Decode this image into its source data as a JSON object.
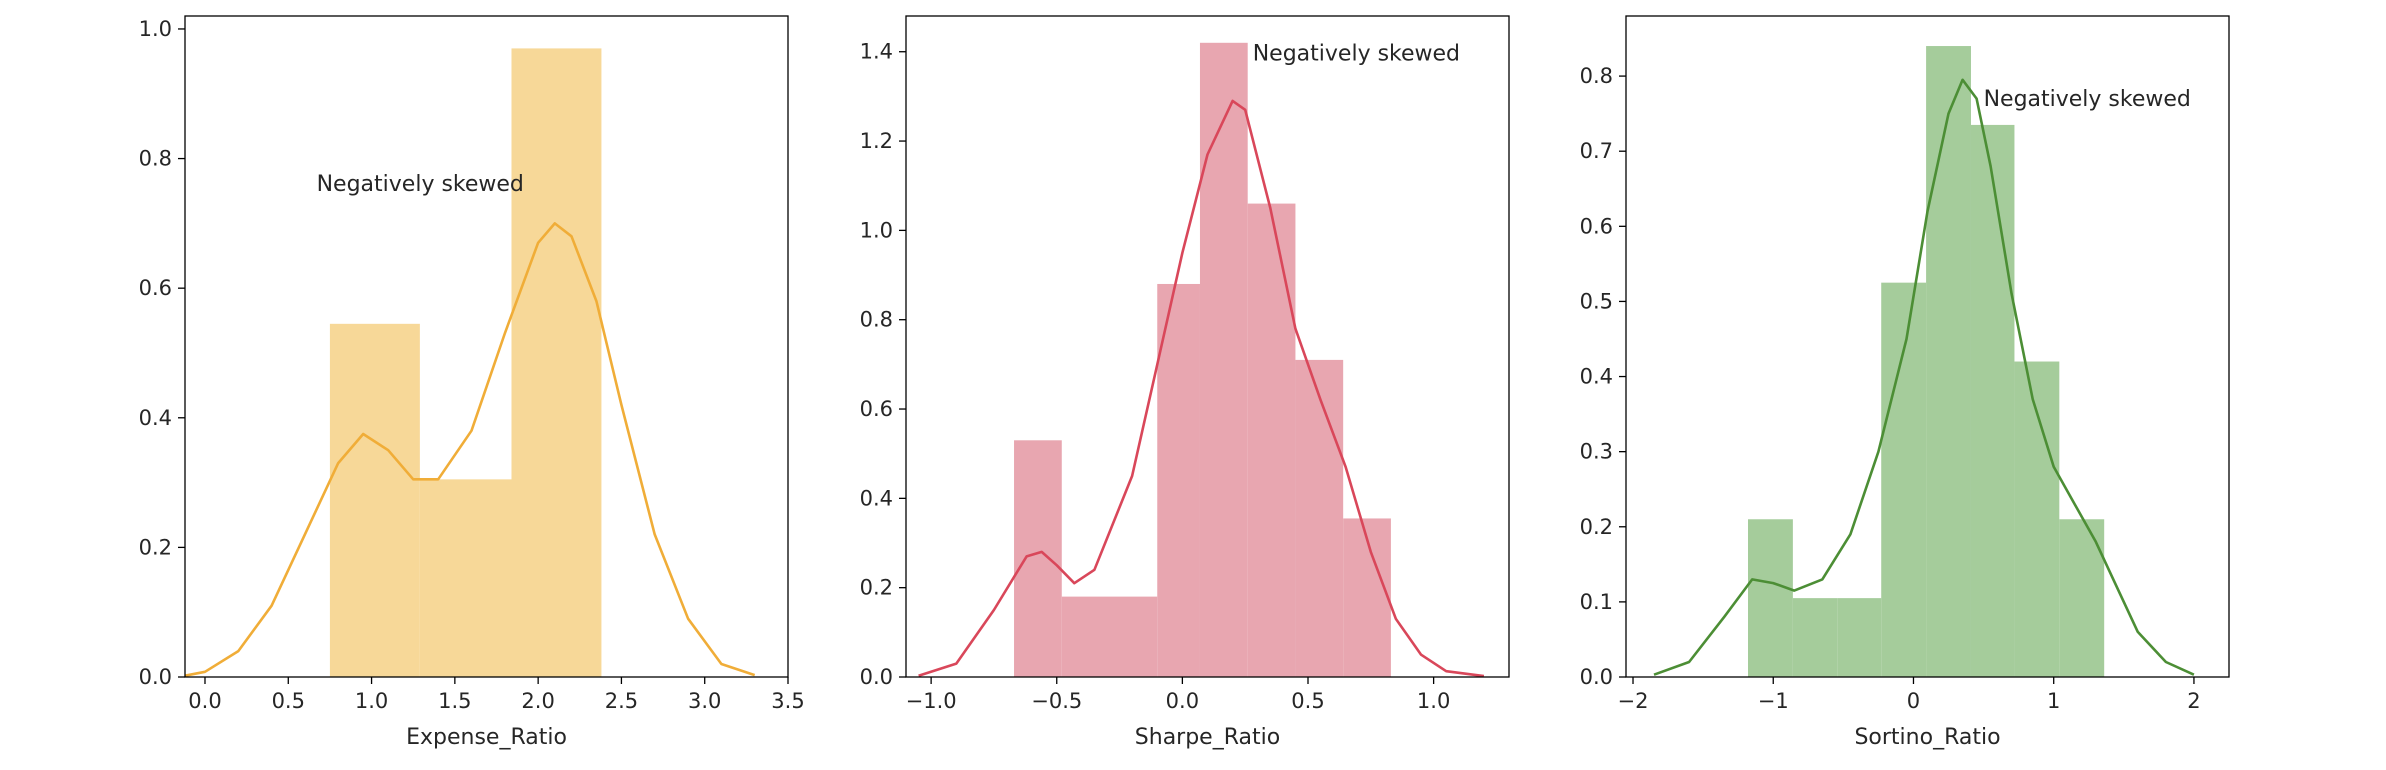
{
  "chart_data": [
    {
      "type": "histogram",
      "xlabel": "Expense_Ratio",
      "ylabel": "",
      "xlim": [
        -0.12,
        3.5
      ],
      "ylim": [
        0,
        1.02
      ],
      "xticks": [
        0.0,
        0.5,
        1.0,
        1.5,
        2.0,
        2.5,
        3.0,
        3.5
      ],
      "xtick_labels": [
        "0.0",
        "0.5",
        "1.0",
        "1.5",
        "2.0",
        "2.5",
        "3.0",
        "3.5"
      ],
      "yticks": [
        0.0,
        0.2,
        0.4,
        0.6,
        0.8,
        1.0
      ],
      "ytick_labels": [
        "0.0",
        "0.2",
        "0.4",
        "0.6",
        "0.8",
        "1.0"
      ],
      "bin_edges": [
        0.75,
        1.29,
        1.84,
        2.38
      ],
      "bin_heights": [
        0.545,
        0.305,
        0.97
      ],
      "kde": [
        [
          -0.12,
          0.002
        ],
        [
          0.0,
          0.008
        ],
        [
          0.2,
          0.04
        ],
        [
          0.4,
          0.11
        ],
        [
          0.6,
          0.22
        ],
        [
          0.8,
          0.33
        ],
        [
          0.95,
          0.375
        ],
        [
          1.1,
          0.35
        ],
        [
          1.25,
          0.305
        ],
        [
          1.4,
          0.305
        ],
        [
          1.6,
          0.38
        ],
        [
          1.8,
          0.53
        ],
        [
          2.0,
          0.67
        ],
        [
          2.1,
          0.7
        ],
        [
          2.2,
          0.68
        ],
        [
          2.35,
          0.58
        ],
        [
          2.5,
          0.42
        ],
        [
          2.7,
          0.22
        ],
        [
          2.9,
          0.09
        ],
        [
          3.1,
          0.02
        ],
        [
          3.3,
          0.003
        ]
      ],
      "color": "#f0ad38",
      "fill_color": "#f7d898",
      "grid": false,
      "annotation": {
        "text": "Negatively skewed",
        "x": 0.67,
        "y": 0.75
      }
    },
    {
      "type": "histogram",
      "xlabel": "Sharpe_Ratio",
      "ylabel": "",
      "xlim": [
        -1.1,
        1.3
      ],
      "ylim": [
        0,
        1.48
      ],
      "xticks": [
        -1.0,
        -0.5,
        0.0,
        0.5,
        1.0
      ],
      "xtick_labels": [
        "−1.0",
        "−0.5",
        "0.0",
        "0.5",
        "1.0"
      ],
      "yticks": [
        0.0,
        0.2,
        0.4,
        0.6,
        0.8,
        1.0,
        1.2,
        1.4
      ],
      "ytick_labels": [
        "0.0",
        "0.2",
        "0.4",
        "0.6",
        "0.8",
        "1.0",
        "1.2",
        "1.4"
      ],
      "bin_edges": [
        -0.67,
        -0.48,
        -0.29,
        -0.1,
        0.07,
        0.26,
        0.45,
        0.64,
        0.83
      ],
      "bin_heights": [
        0.53,
        0.18,
        0.18,
        0.88,
        1.42,
        1.06,
        0.71,
        0.355
      ],
      "kde": [
        [
          -1.05,
          0.003
        ],
        [
          -0.9,
          0.03
        ],
        [
          -0.75,
          0.15
        ],
        [
          -0.62,
          0.27
        ],
        [
          -0.56,
          0.28
        ],
        [
          -0.5,
          0.25
        ],
        [
          -0.43,
          0.21
        ],
        [
          -0.35,
          0.24
        ],
        [
          -0.2,
          0.45
        ],
        [
          -0.1,
          0.7
        ],
        [
          0.0,
          0.95
        ],
        [
          0.1,
          1.17
        ],
        [
          0.2,
          1.29
        ],
        [
          0.25,
          1.27
        ],
        [
          0.35,
          1.05
        ],
        [
          0.45,
          0.78
        ],
        [
          0.55,
          0.62
        ],
        [
          0.65,
          0.47
        ],
        [
          0.75,
          0.28
        ],
        [
          0.85,
          0.13
        ],
        [
          0.95,
          0.05
        ],
        [
          1.05,
          0.013
        ],
        [
          1.2,
          0.002
        ]
      ],
      "color": "#d9475a",
      "fill_color": "#e8a6b0",
      "grid": false,
      "annotation": {
        "text": "Negatively skewed",
        "x": 0.28,
        "y": 1.38
      }
    },
    {
      "type": "histogram",
      "xlabel": "Sortino_Ratio",
      "ylabel": "",
      "xlim": [
        -2.05,
        2.25
      ],
      "ylim": [
        0,
        0.88
      ],
      "xticks": [
        -2,
        -1,
        0,
        1,
        2
      ],
      "xtick_labels": [
        "−2",
        "−1",
        "0",
        "1",
        "2"
      ],
      "yticks": [
        0.0,
        0.1,
        0.2,
        0.3,
        0.4,
        0.5,
        0.6,
        0.7,
        0.8
      ],
      "ytick_labels": [
        "0.0",
        "0.1",
        "0.2",
        "0.3",
        "0.4",
        "0.5",
        "0.6",
        "0.7",
        "0.8"
      ],
      "bin_edges": [
        -1.18,
        -0.86,
        -0.54,
        -0.23,
        0.09,
        0.41,
        0.72,
        1.04,
        1.36
      ],
      "bin_heights": [
        0.21,
        0.105,
        0.105,
        0.525,
        0.84,
        0.735,
        0.42,
        0.21
      ],
      "kde": [
        [
          -1.85,
          0.003
        ],
        [
          -1.6,
          0.02
        ],
        [
          -1.35,
          0.08
        ],
        [
          -1.15,
          0.13
        ],
        [
          -1.0,
          0.125
        ],
        [
          -0.85,
          0.115
        ],
        [
          -0.65,
          0.13
        ],
        [
          -0.45,
          0.19
        ],
        [
          -0.25,
          0.3
        ],
        [
          -0.05,
          0.45
        ],
        [
          0.1,
          0.62
        ],
        [
          0.25,
          0.75
        ],
        [
          0.35,
          0.795
        ],
        [
          0.45,
          0.77
        ],
        [
          0.55,
          0.68
        ],
        [
          0.7,
          0.51
        ],
        [
          0.85,
          0.37
        ],
        [
          1.0,
          0.28
        ],
        [
          1.15,
          0.23
        ],
        [
          1.3,
          0.18
        ],
        [
          1.45,
          0.12
        ],
        [
          1.6,
          0.06
        ],
        [
          1.8,
          0.02
        ],
        [
          2.0,
          0.003
        ]
      ],
      "color": "#4c8e35",
      "fill_color": "#a5cc9b",
      "grid": false,
      "annotation": {
        "text": "Negatively skewed",
        "x": 0.5,
        "y": 0.76
      }
    }
  ]
}
